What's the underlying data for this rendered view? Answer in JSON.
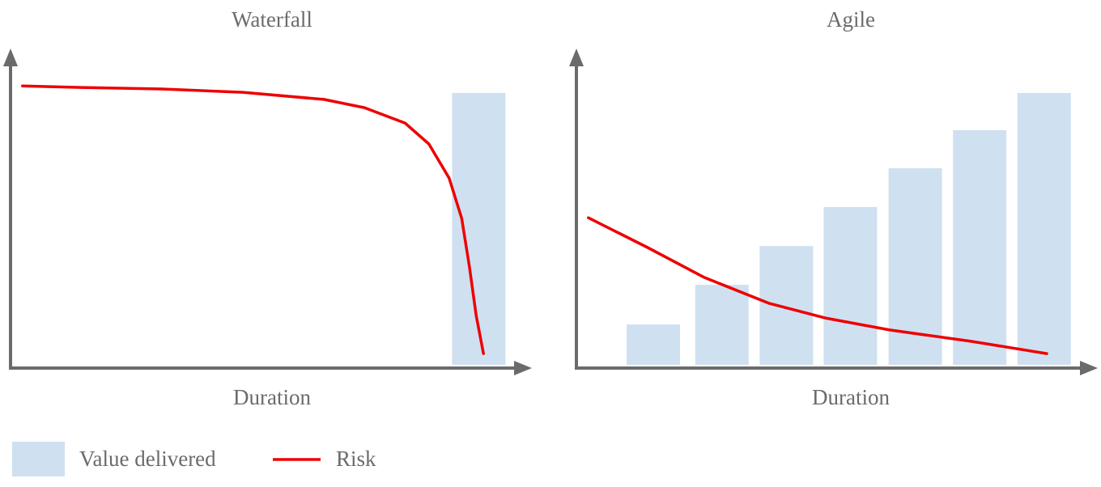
{
  "chart_data": [
    {
      "type": "combo",
      "title": "Waterfall",
      "x_label": "Duration",
      "xlim": [
        0,
        100
      ],
      "ylim": [
        0,
        100
      ],
      "series": [
        {
          "name": "Value delivered",
          "type": "bar",
          "color": "#cfe0f1",
          "x": [
            90.1
          ],
          "values": [
            89.5
          ]
        },
        {
          "name": "Risk",
          "type": "line",
          "color": "#ee0000",
          "x": [
            2.3,
            13.6,
            29.1,
            44.7,
            60.3,
            68.1,
            75.9,
            80.5,
            84.4,
            86.8,
            88.3,
            89.6,
            91.0
          ],
          "values": [
            91.8,
            91.3,
            90.8,
            89.7,
            87.4,
            84.7,
            79.7,
            72.9,
            61.8,
            48.7,
            32.9,
            17.1,
            4.7
          ]
        }
      ]
    },
    {
      "type": "combo",
      "title": "Agile",
      "x_label": "Duration",
      "xlim": [
        0,
        100
      ],
      "ylim": [
        0,
        100
      ],
      "series": [
        {
          "type": "bar",
          "color": "#cfe0f1",
          "x": [
            14.8,
            28.0,
            40.4,
            52.7,
            65.2,
            77.6,
            90.0
          ],
          "values": [
            14.2,
            27.1,
            39.7,
            52.4,
            65.0,
            77.4,
            89.5
          ]
        },
        {
          "type": "line",
          "color": "#ee0000",
          "x": [
            2.3,
            13.7,
            24.6,
            37.0,
            47.9,
            60.3,
            75.9,
            90.5
          ],
          "values": [
            48.9,
            39.2,
            29.5,
            21.1,
            16.3,
            12.4,
            8.7,
            4.7
          ]
        }
      ]
    }
  ]
}
